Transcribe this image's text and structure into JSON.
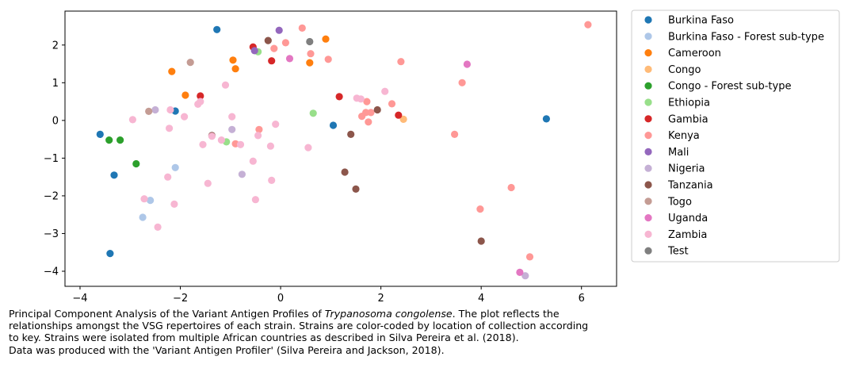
{
  "chart_data": {
    "type": "scatter",
    "title": "",
    "xlabel": "",
    "ylabel": "",
    "xlim": [
      -4.3,
      6.7
    ],
    "ylim": [
      -4.4,
      2.9
    ],
    "xticks": [
      -4,
      -2,
      0,
      2,
      4,
      6
    ],
    "yticks": [
      2,
      1,
      0,
      -1,
      -2,
      -3,
      -4
    ],
    "grid": false,
    "legend_position": "outside-right",
    "series": [
      {
        "name": "Burkina Faso",
        "color": "#1f77b4",
        "points": [
          [
            -3.6,
            -0.37
          ],
          [
            -3.32,
            -1.45
          ],
          [
            -3.4,
            -3.53
          ],
          [
            -2.1,
            0.25
          ],
          [
            -1.27,
            2.41
          ],
          [
            1.05,
            -0.13
          ],
          [
            5.3,
            0.04
          ]
        ]
      },
      {
        "name": "Burkina Faso - Forest sub-type",
        "color": "#aec7e8",
        "points": [
          [
            -2.75,
            -2.57
          ],
          [
            -2.6,
            -2.12
          ],
          [
            -2.1,
            -1.25
          ]
        ]
      },
      {
        "name": "Cameroon",
        "color": "#ff7f0e",
        "points": [
          [
            -2.17,
            1.3
          ],
          [
            -1.9,
            0.67
          ],
          [
            -0.95,
            1.6
          ],
          [
            -0.9,
            1.37
          ],
          [
            0.9,
            2.16
          ],
          [
            0.58,
            1.53
          ]
        ]
      },
      {
        "name": "Congo",
        "color": "#ffbb78",
        "points": [
          [
            2.45,
            0.03
          ]
        ]
      },
      {
        "name": "Congo - Forest sub-type",
        "color": "#2ca02c",
        "points": [
          [
            -3.42,
            -0.52
          ],
          [
            -3.2,
            -0.52
          ],
          [
            -2.88,
            -1.15
          ]
        ]
      },
      {
        "name": "Ethiopia",
        "color": "#98df8a",
        "points": [
          [
            -1.08,
            -0.57
          ],
          [
            -0.45,
            1.82
          ],
          [
            0.65,
            0.19
          ]
        ]
      },
      {
        "name": "Gambia",
        "color": "#d62728",
        "points": [
          [
            -1.6,
            0.65
          ],
          [
            -0.55,
            1.95
          ],
          [
            -0.18,
            1.58
          ],
          [
            1.17,
            0.63
          ],
          [
            2.35,
            0.14
          ]
        ]
      },
      {
        "name": "Kenya",
        "color": "#ff9896",
        "points": [
          [
            0.43,
            2.45
          ],
          [
            0.1,
            2.06
          ],
          [
            -0.13,
            1.91
          ],
          [
            0.6,
            1.77
          ],
          [
            0.95,
            1.62
          ],
          [
            2.4,
            1.56
          ],
          [
            -0.9,
            -0.62
          ],
          [
            -0.43,
            -0.24
          ],
          [
            1.62,
            0.11
          ],
          [
            1.7,
            0.21
          ],
          [
            1.72,
            0.5
          ],
          [
            1.8,
            0.21
          ],
          [
            1.75,
            -0.04
          ],
          [
            2.22,
            0.44
          ],
          [
            3.62,
            1.0
          ],
          [
            3.47,
            -0.37
          ],
          [
            4.6,
            -1.78
          ],
          [
            3.98,
            -2.35
          ],
          [
            4.97,
            -3.62
          ],
          [
            6.13,
            2.54
          ]
        ]
      },
      {
        "name": "Mali",
        "color": "#9467bd",
        "points": [
          [
            -0.03,
            2.39
          ],
          [
            -0.52,
            1.85
          ]
        ]
      },
      {
        "name": "Nigeria",
        "color": "#c5b0d5",
        "points": [
          [
            -2.5,
            0.28
          ],
          [
            -0.97,
            -0.24
          ],
          [
            -0.77,
            -1.43
          ],
          [
            4.88,
            -4.12
          ]
        ]
      },
      {
        "name": "Tanzania",
        "color": "#8c564b",
        "points": [
          [
            -0.25,
            2.12
          ],
          [
            -1.37,
            -0.4
          ],
          [
            1.4,
            -0.37
          ],
          [
            1.93,
            0.28
          ],
          [
            1.28,
            -1.37
          ],
          [
            1.5,
            -1.82
          ],
          [
            4.0,
            -3.2
          ]
        ]
      },
      {
        "name": "Togo",
        "color": "#c49c94",
        "points": [
          [
            -2.63,
            0.24
          ],
          [
            -1.8,
            1.54
          ]
        ]
      },
      {
        "name": "Uganda",
        "color": "#e377c2",
        "points": [
          [
            0.18,
            1.64
          ],
          [
            3.72,
            1.49
          ],
          [
            4.77,
            -4.03
          ]
        ]
      },
      {
        "name": "Zambia",
        "color": "#f7b6d2",
        "points": [
          [
            -2.95,
            0.02
          ],
          [
            -2.72,
            -2.08
          ],
          [
            -2.45,
            -2.83
          ],
          [
            -2.25,
            -1.5
          ],
          [
            -2.22,
            -0.21
          ],
          [
            -2.12,
            -2.22
          ],
          [
            -2.2,
            0.28
          ],
          [
            -1.92,
            0.1
          ],
          [
            -1.65,
            0.43
          ],
          [
            -1.6,
            0.5
          ],
          [
            -1.55,
            -0.64
          ],
          [
            -1.45,
            -1.67
          ],
          [
            -1.37,
            -0.42
          ],
          [
            -1.18,
            -0.52
          ],
          [
            -1.1,
            0.94
          ],
          [
            -0.97,
            0.1
          ],
          [
            -0.8,
            -0.64
          ],
          [
            -0.55,
            -1.08
          ],
          [
            -0.5,
            -2.1
          ],
          [
            -0.45,
            -0.4
          ],
          [
            -0.2,
            -0.68
          ],
          [
            -0.18,
            -1.59
          ],
          [
            -0.1,
            -0.1
          ],
          [
            0.55,
            -0.72
          ],
          [
            1.52,
            0.59
          ],
          [
            1.6,
            0.57
          ],
          [
            2.08,
            0.77
          ]
        ]
      },
      {
        "name": "Test",
        "color": "#7f7f7f",
        "points": [
          [
            0.58,
            2.09
          ]
        ]
      }
    ]
  },
  "caption": {
    "line1_before": "Principal Component Analysis of the Variant Antigen Profiles of ",
    "line1_species": "Trypanosoma congolense",
    "line1_after": ". The plot reflects the",
    "line2": "relationships amongst the VSG repertoires of each strain. Strains are color-coded by location of collection according",
    "line3": "to key. Strains were isolated from multiple African countries as described in Silva Pereira et al. (2018).",
    "line4": "Data was produced with the 'Variant Antigen Profiler' (Silva Pereira and Jackson, 2018)."
  }
}
